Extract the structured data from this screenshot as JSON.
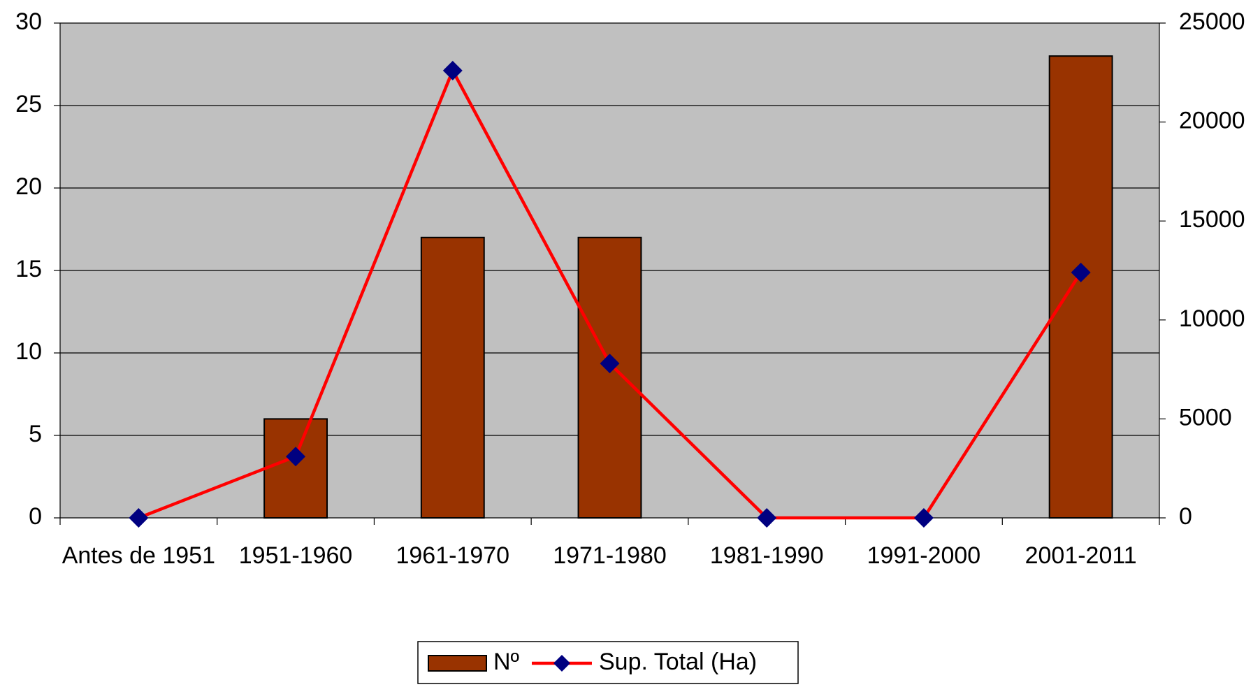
{
  "chart_data": {
    "type": "bar_line",
    "categories": [
      "Antes de 1951",
      "1951-1960",
      "1961-1970",
      "1971-1980",
      "1981-1990",
      "1991-2000",
      "2001-2011"
    ],
    "series": [
      {
        "name": "Nº",
        "type": "bar",
        "color": "#993300",
        "values": [
          0,
          6,
          17,
          17,
          0,
          0,
          28
        ]
      },
      {
        "name": "Sup. Total (Ha)",
        "type": "line",
        "axis": "y2",
        "color": "#ff0000",
        "marker_color": "#000080",
        "values": [
          0,
          3100,
          22600,
          7800,
          0,
          0,
          12400
        ]
      }
    ],
    "ylim": [
      0,
      30
    ],
    "yticks": [
      0,
      5,
      10,
      15,
      20,
      25,
      30
    ],
    "y2lim": [
      0,
      25000
    ],
    "y2ticks": [
      0,
      5000,
      10000,
      15000,
      20000,
      25000
    ],
    "grid": true,
    "legend": "bottom",
    "background": "#c0c0c0"
  }
}
